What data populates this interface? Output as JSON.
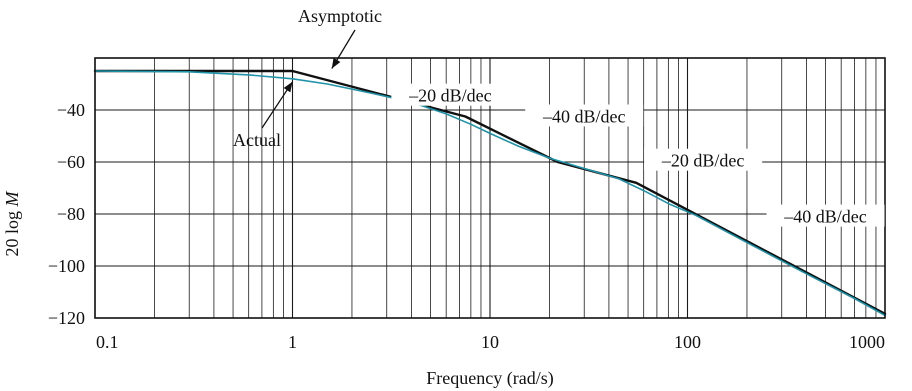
{
  "chart_data": {
    "type": "line",
    "xscale": "log",
    "xlim": [
      0.1,
      1000
    ],
    "ylim": [
      -120,
      -20
    ],
    "grid": true,
    "xlabel": "Frequency (rad/s)",
    "ylabel_prefix": "20 log ",
    "ylabel_var": "M",
    "xticks": [
      0.1,
      1,
      10,
      100,
      1000
    ],
    "xtick_labels": [
      "0.1",
      "1",
      "10",
      "100",
      "1000"
    ],
    "yticks": [
      -40,
      -60,
      -80,
      -100,
      -120
    ],
    "ytick_labels": [
      "−40",
      "−60",
      "−80",
      "−100",
      "−120"
    ],
    "series": [
      {
        "name": "Asymptotic",
        "color": "#111111",
        "x": [
          0.1,
          1,
          7.5,
          22,
          55,
          1000
        ],
        "y": [
          -25,
          -25,
          -42.5,
          -60,
          -68,
          -118.4
        ]
      },
      {
        "name": "Actual",
        "color": "#1f93a8",
        "x": [
          0.1,
          0.3,
          0.6,
          1,
          1.5,
          2.5,
          4,
          6,
          8,
          10,
          14,
          20,
          30,
          45,
          60,
          80,
          110,
          200,
          400,
          700,
          1000
        ],
        "y": [
          -25,
          -25.3,
          -26.5,
          -28,
          -30,
          -33.5,
          -37,
          -41.5,
          -45.5,
          -49,
          -54,
          -58.5,
          -62.5,
          -66.5,
          -71,
          -76,
          -80.5,
          -91,
          -103,
          -112.5,
          -119
        ]
      }
    ],
    "annotations": [
      {
        "text": "Asymptotic",
        "points_to_x": 1.6,
        "points_to_y": -25.6
      },
      {
        "text": "Actual",
        "points_to_x": 1,
        "points_to_y": -28
      },
      {
        "text": "–20 dB/dec",
        "x": 6.3,
        "y": -34.5
      },
      {
        "text": "–40 dB/dec",
        "x": 30,
        "y": -42.5
      },
      {
        "text": "–20 dB/dec",
        "x": 120,
        "y": -59.5
      },
      {
        "text": "–40 dB/dec",
        "x": 500,
        "y": -81
      }
    ]
  }
}
